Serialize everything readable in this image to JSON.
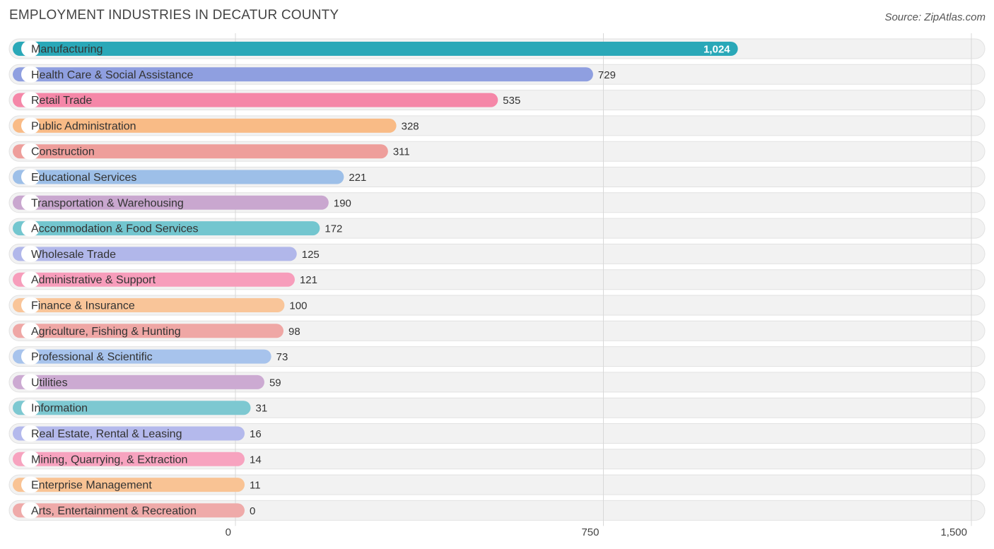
{
  "title": "EMPLOYMENT INDUSTRIES IN DECATUR COUNTY",
  "source": "Source: ZipAtlas.com",
  "chart_data": {
    "type": "bar",
    "orientation": "horizontal",
    "title": "EMPLOYMENT INDUSTRIES IN DECATUR COUNTY",
    "categories": [
      "Manufacturing",
      "Health Care & Social Assistance",
      "Retail Trade",
      "Public Administration",
      "Construction",
      "Educational Services",
      "Transportation & Warehousing",
      "Accommodation & Food Services",
      "Wholesale Trade",
      "Administrative & Support",
      "Finance & Insurance",
      "Agriculture, Fishing & Hunting",
      "Professional & Scientific",
      "Utilities",
      "Information",
      "Real Estate, Rental & Leasing",
      "Mining, Quarrying, & Extraction",
      "Enterprise Management",
      "Arts, Entertainment & Recreation"
    ],
    "values": [
      1024,
      729,
      535,
      328,
      311,
      221,
      190,
      172,
      125,
      121,
      100,
      98,
      73,
      59,
      31,
      16,
      14,
      11,
      0
    ],
    "value_labels": [
      "1,024",
      "729",
      "535",
      "328",
      "311",
      "221",
      "190",
      "172",
      "125",
      "121",
      "100",
      "98",
      "73",
      "59",
      "31",
      "16",
      "14",
      "11",
      "0"
    ],
    "colors": [
      "#2aa8b8",
      "#8f9fe0",
      "#f587a8",
      "#f9bb86",
      "#ee9e9b",
      "#9dbfe8",
      "#c9a7cf",
      "#73c6cf",
      "#b1b7ea",
      "#f79dbb",
      "#f9c599",
      "#efa7a5",
      "#a7c3ec",
      "#ccaad2",
      "#7dc8d1",
      "#b4b9ec",
      "#f7a3bf",
      "#f9c394",
      "#efaaa9"
    ],
    "xticks": [
      0,
      750,
      1500
    ],
    "xtick_labels": [
      "0",
      "750",
      "1,500"
    ],
    "xlim": [
      0,
      1500
    ],
    "grid": true
  }
}
